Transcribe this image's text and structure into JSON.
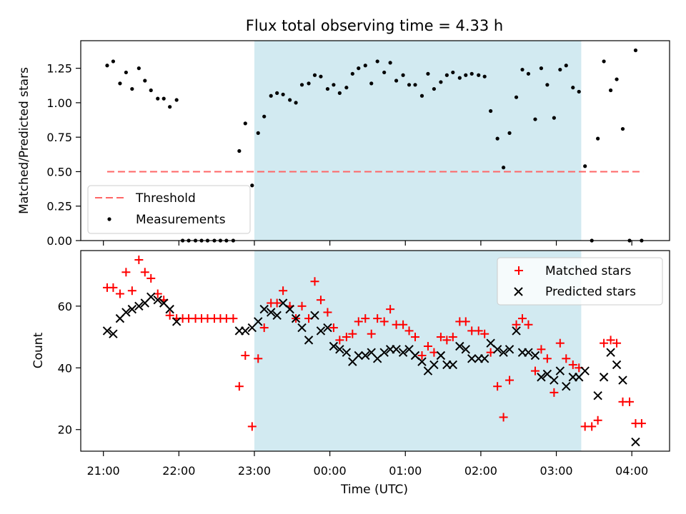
{
  "chart_data": [
    {
      "type": "scatter",
      "title": "Flux total observing time = 4.33 h",
      "ylabel": "Matched/Predicted stars",
      "xlabel": "",
      "x_unit": "hours (UTC, continuing past midnight)",
      "xlim": [
        20.7,
        28.5
      ],
      "ylim": [
        0,
        1.45
      ],
      "yticks": [
        "0.00",
        "0.25",
        "0.50",
        "0.75",
        "1.00",
        "1.25"
      ],
      "shaded_region": {
        "x0": 23.0,
        "x1": 27.33,
        "color": "#add8e6"
      },
      "threshold": {
        "label": "Threshold",
        "value": 0.5,
        "x0": 21.05,
        "x1": 28.15,
        "color": "#ff6666"
      },
      "legend": {
        "placement": "lower-left",
        "entries": [
          "Threshold",
          "Measurements"
        ]
      },
      "series": [
        {
          "name": "Measurements",
          "marker": "dot",
          "color": "#000000",
          "points": [
            [
              21.05,
              1.27
            ],
            [
              21.13,
              1.3
            ],
            [
              21.22,
              1.14
            ],
            [
              21.3,
              1.22
            ],
            [
              21.38,
              1.1
            ],
            [
              21.47,
              1.25
            ],
            [
              21.55,
              1.16
            ],
            [
              21.63,
              1.09
            ],
            [
              21.72,
              1.03
            ],
            [
              21.8,
              1.03
            ],
            [
              21.88,
              0.97
            ],
            [
              21.97,
              1.02
            ],
            [
              22.05,
              0.0
            ],
            [
              22.13,
              0.0
            ],
            [
              22.22,
              0.0
            ],
            [
              22.3,
              0.0
            ],
            [
              22.38,
              0.0
            ],
            [
              22.47,
              0.0
            ],
            [
              22.55,
              0.0
            ],
            [
              22.63,
              0.0
            ],
            [
              22.72,
              0.0
            ],
            [
              22.8,
              0.65
            ],
            [
              22.88,
              0.85
            ],
            [
              22.97,
              0.4
            ],
            [
              23.05,
              0.78
            ],
            [
              23.13,
              0.9
            ],
            [
              23.22,
              1.05
            ],
            [
              23.3,
              1.07
            ],
            [
              23.38,
              1.06
            ],
            [
              23.47,
              1.02
            ],
            [
              23.55,
              1.0
            ],
            [
              23.63,
              1.13
            ],
            [
              23.72,
              1.14
            ],
            [
              23.8,
              1.2
            ],
            [
              23.88,
              1.19
            ],
            [
              23.97,
              1.1
            ],
            [
              24.05,
              1.13
            ],
            [
              24.13,
              1.07
            ],
            [
              24.22,
              1.11
            ],
            [
              24.3,
              1.21
            ],
            [
              24.38,
              1.25
            ],
            [
              24.47,
              1.27
            ],
            [
              24.55,
              1.14
            ],
            [
              24.63,
              1.3
            ],
            [
              24.72,
              1.22
            ],
            [
              24.8,
              1.29
            ],
            [
              24.88,
              1.16
            ],
            [
              24.97,
              1.2
            ],
            [
              25.05,
              1.13
            ],
            [
              25.13,
              1.13
            ],
            [
              25.22,
              1.05
            ],
            [
              25.3,
              1.21
            ],
            [
              25.38,
              1.1
            ],
            [
              25.47,
              1.15
            ],
            [
              25.55,
              1.2
            ],
            [
              25.63,
              1.22
            ],
            [
              25.72,
              1.18
            ],
            [
              25.8,
              1.2
            ],
            [
              25.88,
              1.21
            ],
            [
              25.97,
              1.2
            ],
            [
              26.05,
              1.19
            ],
            [
              26.13,
              0.94
            ],
            [
              26.22,
              0.74
            ],
            [
              26.3,
              0.53
            ],
            [
              26.38,
              0.78
            ],
            [
              26.47,
              1.04
            ],
            [
              26.55,
              1.24
            ],
            [
              26.63,
              1.21
            ],
            [
              26.72,
              0.88
            ],
            [
              26.8,
              1.25
            ],
            [
              26.88,
              1.13
            ],
            [
              26.97,
              0.89
            ],
            [
              27.05,
              1.24
            ],
            [
              27.13,
              1.27
            ],
            [
              27.22,
              1.11
            ],
            [
              27.3,
              1.08
            ],
            [
              27.38,
              0.54
            ],
            [
              27.47,
              0.0
            ],
            [
              27.55,
              0.74
            ],
            [
              27.63,
              1.3
            ],
            [
              27.72,
              1.09
            ],
            [
              27.8,
              1.17
            ],
            [
              27.88,
              0.81
            ],
            [
              27.97,
              0.0
            ],
            [
              28.05,
              1.38
            ],
            [
              28.13,
              0.0
            ]
          ]
        }
      ]
    },
    {
      "type": "scatter",
      "title": "",
      "ylabel": "Count",
      "xlabel": "Time (UTC)",
      "xlim": [
        20.7,
        28.5
      ],
      "ylim": [
        13,
        78
      ],
      "yticks": [
        "20",
        "40",
        "60"
      ],
      "xticks": [
        "21:00",
        "22:00",
        "23:00",
        "00:00",
        "01:00",
        "02:00",
        "03:00",
        "04:00"
      ],
      "shaded_region": {
        "x0": 23.0,
        "x1": 27.33,
        "color": "#add8e6"
      },
      "legend": {
        "placement": "top-right",
        "entries": [
          "Matched stars",
          "Predicted stars"
        ]
      },
      "series": [
        {
          "name": "Matched stars",
          "marker": "plus",
          "color": "#ff0000",
          "points": [
            [
              21.05,
              66
            ],
            [
              21.13,
              66
            ],
            [
              21.22,
              64
            ],
            [
              21.3,
              71
            ],
            [
              21.38,
              65
            ],
            [
              21.47,
              75
            ],
            [
              21.55,
              71
            ],
            [
              21.63,
              69
            ],
            [
              21.72,
              64
            ],
            [
              21.8,
              62
            ],
            [
              21.88,
              57
            ],
            [
              21.97,
              56
            ],
            [
              22.05,
              56
            ],
            [
              22.13,
              56
            ],
            [
              22.22,
              56
            ],
            [
              22.3,
              56
            ],
            [
              22.38,
              56
            ],
            [
              22.47,
              56
            ],
            [
              22.55,
              56
            ],
            [
              22.63,
              56
            ],
            [
              22.72,
              56
            ],
            [
              22.8,
              34
            ],
            [
              22.88,
              44
            ],
            [
              22.97,
              21
            ],
            [
              23.05,
              43
            ],
            [
              23.13,
              53
            ],
            [
              23.22,
              61
            ],
            [
              23.3,
              61
            ],
            [
              23.38,
              65
            ],
            [
              23.47,
              60
            ],
            [
              23.55,
              56
            ],
            [
              23.63,
              60
            ],
            [
              23.72,
              56
            ],
            [
              23.8,
              68
            ],
            [
              23.88,
              62
            ],
            [
              23.97,
              58
            ],
            [
              24.05,
              53
            ],
            [
              24.13,
              49
            ],
            [
              24.22,
              50
            ],
            [
              24.3,
              51
            ],
            [
              24.38,
              55
            ],
            [
              24.47,
              56
            ],
            [
              24.55,
              51
            ],
            [
              24.63,
              56
            ],
            [
              24.72,
              55
            ],
            [
              24.8,
              59
            ],
            [
              24.88,
              54
            ],
            [
              24.97,
              54
            ],
            [
              25.05,
              52
            ],
            [
              25.13,
              50
            ],
            [
              25.22,
              44
            ],
            [
              25.3,
              47
            ],
            [
              25.38,
              45
            ],
            [
              25.47,
              50
            ],
            [
              25.55,
              49
            ],
            [
              25.63,
              50
            ],
            [
              25.72,
              55
            ],
            [
              25.8,
              55
            ],
            [
              25.88,
              52
            ],
            [
              25.97,
              52
            ],
            [
              26.05,
              51
            ],
            [
              26.13,
              45
            ],
            [
              26.22,
              34
            ],
            [
              26.3,
              24
            ],
            [
              26.38,
              36
            ],
            [
              26.47,
              54
            ],
            [
              26.55,
              56
            ],
            [
              26.63,
              54
            ],
            [
              26.72,
              39
            ],
            [
              26.8,
              46
            ],
            [
              26.88,
              43
            ],
            [
              26.97,
              32
            ],
            [
              27.05,
              48
            ],
            [
              27.13,
              43
            ],
            [
              27.22,
              41
            ],
            [
              27.3,
              40
            ],
            [
              27.38,
              21
            ],
            [
              27.47,
              21
            ],
            [
              27.55,
              23
            ],
            [
              27.63,
              48
            ],
            [
              27.72,
              49
            ],
            [
              27.8,
              48
            ],
            [
              27.88,
              29
            ],
            [
              27.97,
              29
            ],
            [
              28.05,
              22
            ],
            [
              28.13,
              22
            ]
          ]
        },
        {
          "name": "Predicted stars",
          "marker": "x",
          "color": "#000000",
          "points": [
            [
              21.05,
              52
            ],
            [
              21.13,
              51
            ],
            [
              21.22,
              56
            ],
            [
              21.3,
              58
            ],
            [
              21.38,
              59
            ],
            [
              21.47,
              60
            ],
            [
              21.55,
              61
            ],
            [
              21.63,
              63
            ],
            [
              21.72,
              62
            ],
            [
              21.8,
              61
            ],
            [
              21.88,
              59
            ],
            [
              21.97,
              55
            ],
            [
              22.8,
              52
            ],
            [
              22.88,
              52
            ],
            [
              22.97,
              53
            ],
            [
              23.05,
              55
            ],
            [
              23.13,
              59
            ],
            [
              23.22,
              58
            ],
            [
              23.3,
              57
            ],
            [
              23.38,
              61
            ],
            [
              23.47,
              59
            ],
            [
              23.55,
              56
            ],
            [
              23.63,
              53
            ],
            [
              23.72,
              49
            ],
            [
              23.8,
              57
            ],
            [
              23.88,
              52
            ],
            [
              23.97,
              53
            ],
            [
              24.05,
              47
            ],
            [
              24.13,
              46
            ],
            [
              24.22,
              45
            ],
            [
              24.3,
              42
            ],
            [
              24.38,
              44
            ],
            [
              24.47,
              44
            ],
            [
              24.55,
              45
            ],
            [
              24.63,
              43
            ],
            [
              24.72,
              45
            ],
            [
              24.8,
              46
            ],
            [
              24.88,
              46
            ],
            [
              24.97,
              45
            ],
            [
              25.05,
              46
            ],
            [
              25.13,
              44
            ],
            [
              25.22,
              42
            ],
            [
              25.3,
              39
            ],
            [
              25.38,
              41
            ],
            [
              25.47,
              44
            ],
            [
              25.55,
              41
            ],
            [
              25.63,
              41
            ],
            [
              25.72,
              47
            ],
            [
              25.8,
              46
            ],
            [
              25.88,
              43
            ],
            [
              25.97,
              43
            ],
            [
              26.05,
              43
            ],
            [
              26.13,
              48
            ],
            [
              26.22,
              46
            ],
            [
              26.3,
              45
            ],
            [
              26.38,
              46
            ],
            [
              26.47,
              52
            ],
            [
              26.55,
              45
            ],
            [
              26.63,
              45
            ],
            [
              26.72,
              44
            ],
            [
              26.8,
              37
            ],
            [
              26.88,
              38
            ],
            [
              26.97,
              36
            ],
            [
              27.05,
              39
            ],
            [
              27.13,
              34
            ],
            [
              27.22,
              37
            ],
            [
              27.3,
              37
            ],
            [
              27.38,
              39
            ],
            [
              27.55,
              31
            ],
            [
              27.63,
              37
            ],
            [
              27.72,
              45
            ],
            [
              27.8,
              41
            ],
            [
              27.88,
              36
            ],
            [
              28.05,
              16
            ]
          ]
        }
      ]
    }
  ]
}
